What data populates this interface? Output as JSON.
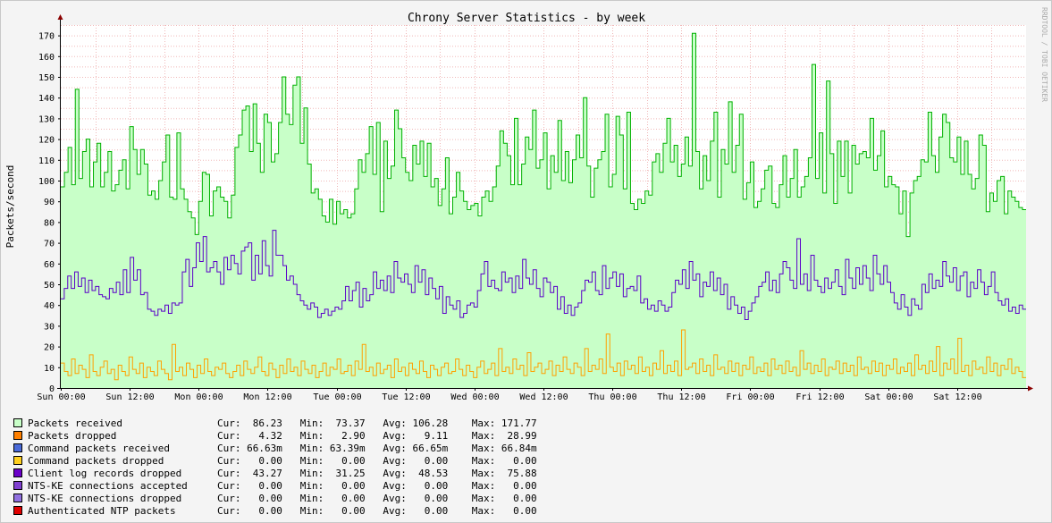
{
  "chart_data": {
    "type": "area",
    "title": "Chrony Server Statistics - by week",
    "ylabel": "Packets/second",
    "watermark": "RRDTOOL / TOBI OETIKER",
    "ylim": [
      0,
      175
    ],
    "yticks": [
      0,
      10,
      20,
      30,
      40,
      50,
      60,
      70,
      80,
      90,
      100,
      110,
      120,
      130,
      140,
      150,
      160,
      170
    ],
    "x_tick_labels": [
      "Sun 00:00",
      "Sun 12:00",
      "Mon 00:00",
      "Mon 12:00",
      "Tue 00:00",
      "Tue 12:00",
      "Wed 00:00",
      "Wed 12:00",
      "Thu 00:00",
      "Thu 12:00",
      "Fri 00:00",
      "Fri 12:00",
      "Sat 00:00",
      "Sat 12:00"
    ],
    "x_range_hours": [
      0,
      168
    ],
    "grid": true,
    "colors": {
      "background": "#f4f4f4",
      "plot": "#ffffff",
      "grid": "#f0b8b8",
      "axis": "#000000",
      "arrow": "#8b0000",
      "received_fill": "#c8ffc8",
      "received_line": "#00b000",
      "client_line": "#5a00c8",
      "dropped_line": "#ffa000"
    },
    "series": [
      {
        "name": "Packets received",
        "style": "area",
        "values": [
          97,
          104,
          116,
          98,
          144,
          101,
          114,
          120,
          97,
          109,
          118,
          97,
          104,
          114,
          95,
          98,
          105,
          110,
          96,
          126,
          115,
          103,
          115,
          108,
          93,
          95,
          91,
          100,
          109,
          122,
          92,
          91,
          123,
          96,
          91,
          85,
          82,
          74,
          90,
          104,
          103,
          83,
          95,
          97,
          92,
          90,
          82,
          93,
          116,
          122,
          134,
          136,
          114,
          137,
          118,
          104,
          132,
          128,
          109,
          113,
          128,
          150,
          132,
          127,
          146,
          150,
          118,
          135,
          108,
          94,
          96,
          91,
          83,
          80,
          91,
          79,
          90,
          84,
          86,
          82,
          84,
          96,
          110,
          104,
          113,
          126,
          103,
          128,
          85,
          119,
          101,
          107,
          134,
          125,
          111,
          104,
          100,
          117,
          108,
          119,
          102,
          118,
          97,
          101,
          88,
          96,
          111,
          84,
          92,
          104,
          95,
          90,
          86,
          88,
          89,
          83,
          92,
          95,
          90,
          97,
          107,
          124,
          118,
          112,
          98,
          130,
          98,
          108,
          121,
          115,
          134,
          106,
          110,
          123,
          96,
          112,
          104,
          129,
          100,
          114,
          99,
          110,
          122,
          111,
          140,
          107,
          92,
          106,
          110,
          114,
          132,
          97,
          103,
          131,
          122,
          96,
          133,
          89,
          86,
          91,
          89,
          95,
          93,
          109,
          113,
          104,
          118,
          130,
          109,
          117,
          102,
          108,
          121,
          107,
          171,
          114,
          96,
          112,
          100,
          119,
          133,
          92,
          115,
          108,
          138,
          104,
          117,
          132,
          91,
          99,
          109,
          87,
          90,
          96,
          105,
          107,
          89,
          87,
          98,
          112,
          92,
          101,
          115,
          92,
          97,
          102,
          111,
          156,
          101,
          123,
          94,
          148,
          113,
          89,
          119,
          102,
          119,
          94,
          117,
          108,
          113,
          114,
          111,
          130,
          105,
          112,
          124,
          97,
          102,
          98,
          97,
          84,
          95,
          73,
          94,
          100,
          102,
          110,
          109,
          133,
          112,
          104,
          121,
          132,
          128,
          111,
          109,
          121,
          103,
          119,
          103,
          96,
          101,
          122,
          117,
          85,
          94,
          90,
          100,
          102,
          84,
          95,
          92,
          90,
          87,
          86
        ],
        "stats": {
          "cur": "86.23",
          "min": "73.37",
          "avg": "106.28",
          "max": "171.77"
        }
      },
      {
        "name": "Client log records dropped",
        "style": "line",
        "values": [
          43,
          48,
          54,
          48,
          56,
          49,
          53,
          46,
          52,
          47,
          49,
          45,
          44,
          43,
          48,
          46,
          51,
          45,
          57,
          46,
          63,
          52,
          57,
          45,
          46,
          38,
          37,
          35,
          38,
          37,
          40,
          36,
          41,
          40,
          41,
          56,
          62,
          49,
          58,
          70,
          61,
          73,
          56,
          58,
          61,
          56,
          50,
          63,
          57,
          64,
          60,
          55,
          66,
          68,
          70,
          52,
          64,
          55,
          71,
          59,
          54,
          76,
          64,
          64,
          59,
          52,
          54,
          50,
          45,
          42,
          40,
          38,
          41,
          39,
          34,
          36,
          38,
          35,
          37,
          39,
          38,
          42,
          49,
          42,
          47,
          51,
          39,
          48,
          42,
          45,
          56,
          48,
          52,
          47,
          54,
          46,
          61,
          53,
          51,
          55,
          50,
          46,
          59,
          51,
          57,
          45,
          53,
          48,
          43,
          49,
          36,
          44,
          40,
          38,
          42,
          34,
          36,
          40,
          41,
          39,
          47,
          55,
          61,
          49,
          52,
          48,
          47,
          56,
          51,
          53,
          46,
          54,
          48,
          62,
          53,
          50,
          57,
          48,
          44,
          53,
          51,
          46,
          49,
          38,
          44,
          36,
          40,
          35,
          39,
          41,
          47,
          52,
          51,
          56,
          47,
          45,
          59,
          48,
          53,
          56,
          49,
          55,
          44,
          48,
          49,
          47,
          54,
          41,
          43,
          38,
          40,
          37,
          42,
          40,
          37,
          39,
          46,
          52,
          50,
          57,
          48,
          61,
          52,
          55,
          44,
          51,
          49,
          56,
          47,
          53,
          45,
          50,
          38,
          44,
          40,
          36,
          39,
          33,
          37,
          41,
          44,
          49,
          51,
          56,
          47,
          52,
          46,
          55,
          61,
          58,
          52,
          48,
          72,
          50,
          55,
          47,
          64,
          52,
          49,
          46,
          53,
          48,
          51,
          57,
          49,
          45,
          62,
          53,
          48,
          58,
          50,
          59,
          53,
          47,
          64,
          55,
          50,
          59,
          51,
          46,
          41,
          38,
          45,
          39,
          35,
          43,
          40,
          38,
          50,
          46,
          55,
          48,
          52,
          49,
          61,
          54,
          51,
          58,
          47,
          54,
          56,
          44,
          51,
          48,
          57,
          51,
          45,
          49,
          56,
          46,
          42,
          40,
          43,
          37,
          39,
          36,
          40,
          38
        ],
        "stats": {
          "cur": "43.27",
          "min": "31.25",
          "avg": "48.53",
          "max": "75.88"
        }
      },
      {
        "name": "Packets dropped",
        "style": "line",
        "values": [
          12,
          8,
          6,
          14,
          7,
          11,
          9,
          5,
          16,
          8,
          6,
          10,
          13,
          7,
          9,
          4,
          11,
          8,
          6,
          15,
          9,
          7,
          12,
          5,
          10,
          8,
          6,
          13,
          9,
          7,
          4,
          21,
          8,
          10,
          6,
          12,
          9,
          5,
          11,
          7,
          14,
          8,
          6,
          10,
          9,
          12,
          7,
          5,
          8,
          11,
          6,
          13,
          9,
          7,
          10,
          15,
          8,
          6,
          12,
          9,
          5,
          11,
          7,
          14,
          8,
          10,
          6,
          13,
          9,
          7,
          11,
          5,
          8,
          12,
          6,
          10,
          9,
          14,
          7,
          8,
          11,
          6,
          13,
          9,
          21,
          8,
          10,
          6,
          12,
          7,
          9,
          11,
          5,
          14,
          8,
          10,
          6,
          12,
          9,
          7,
          13,
          8,
          5,
          11,
          9,
          6,
          10,
          12,
          7,
          8,
          14,
          9,
          6,
          11,
          8,
          5,
          10,
          13,
          7,
          9,
          12,
          6,
          19,
          8,
          10,
          7,
          14,
          9,
          11,
          6,
          17,
          8,
          10,
          12,
          7,
          9,
          13,
          6,
          11,
          8,
          15,
          9,
          7,
          12,
          10,
          6,
          19,
          8,
          11,
          9,
          14,
          7,
          26,
          10,
          8,
          12,
          6,
          13,
          9,
          11,
          7,
          15,
          8,
          10,
          6,
          12,
          9,
          18,
          7,
          11,
          8,
          13,
          6,
          28,
          9,
          10,
          12,
          7,
          14,
          8,
          11,
          6,
          16,
          9,
          10,
          7,
          13,
          8,
          12,
          6,
          11,
          9,
          15,
          7,
          10,
          8,
          12,
          6,
          14,
          9,
          11,
          7,
          13,
          8,
          10,
          6,
          18,
          9,
          12,
          7,
          11,
          8,
          14,
          6,
          10,
          9,
          13,
          7,
          12,
          8,
          11,
          6,
          15,
          9,
          10,
          7,
          13,
          8,
          12,
          6,
          11,
          9,
          14,
          7,
          10,
          8,
          12,
          6,
          16,
          9,
          11,
          7,
          13,
          8,
          20,
          6,
          12,
          9,
          14,
          7,
          24,
          8,
          11,
          6,
          13,
          9,
          10,
          7,
          15,
          8,
          12,
          6,
          11,
          9,
          14,
          7,
          10,
          8,
          5
        ],
        "stats": {
          "cur": "4.32",
          "min": "2.90",
          "avg": "9.11",
          "max": "28.99"
        }
      }
    ],
    "legend": [
      {
        "name": "Packets received",
        "color": "#c8ffc8",
        "cur": "86.23",
        "min": "73.37",
        "avg": "106.28",
        "max": "171.77"
      },
      {
        "name": "Packets dropped",
        "color": "#ff8000",
        "cur": "4.32",
        "min": "2.90",
        "avg": "9.11",
        "max": "28.99"
      },
      {
        "name": "Command packets received",
        "color": "#4a6ad8",
        "cur": "66.63m",
        "min": "63.39m",
        "avg": "66.65m",
        "max": "66.84m"
      },
      {
        "name": "Command packets dropped",
        "color": "#ffd020",
        "cur": "0.00",
        "min": "0.00",
        "avg": "0.00",
        "max": "0.00"
      },
      {
        "name": "Client log records dropped",
        "color": "#6a00c8",
        "cur": "43.27",
        "min": "31.25",
        "avg": "48.53",
        "max": "75.88"
      },
      {
        "name": "NTS-KE connections accepted",
        "color": "#8040d0",
        "cur": "0.00",
        "min": "0.00",
        "avg": "0.00",
        "max": "0.00"
      },
      {
        "name": "NTS-KE connections dropped",
        "color": "#9070e0",
        "cur": "0.00",
        "min": "0.00",
        "avg": "0.00",
        "max": "0.00"
      },
      {
        "name": "Authenticated NTP packets",
        "color": "#e00000",
        "cur": "0.00",
        "min": "0.00",
        "avg": "0.00",
        "max": "0.00"
      }
    ],
    "stat_labels": {
      "cur": "Cur:",
      "min": "Min:",
      "avg": "Avg:",
      "max": "Max:"
    }
  }
}
